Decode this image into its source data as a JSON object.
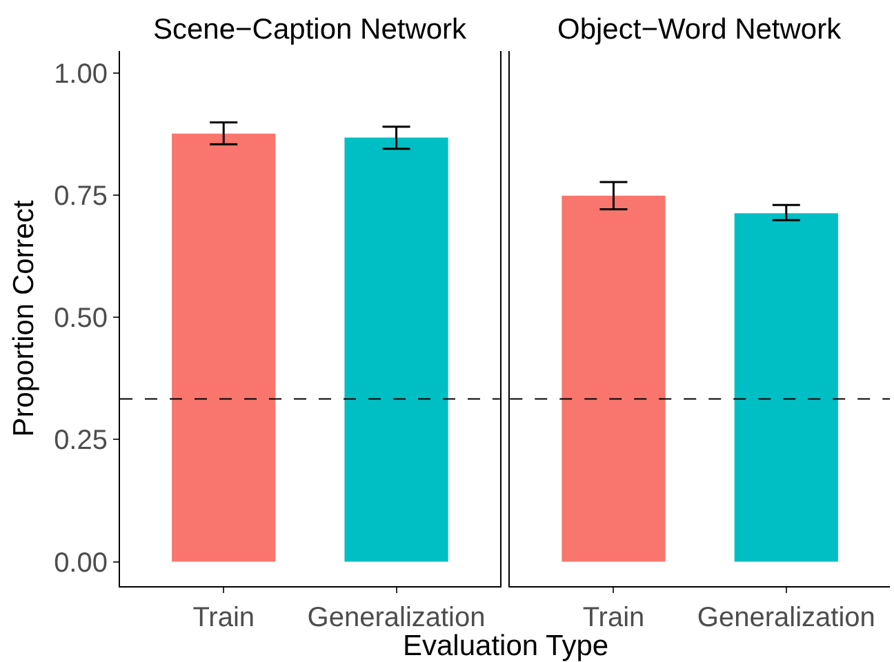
{
  "chart_data": [
    {
      "type": "bar",
      "title": "Scene−Caption Network",
      "ylabel": "Proportion Correct",
      "xlabel": "Evaluation Type",
      "categories": [
        "Train",
        "Generalization"
      ],
      "values": [
        0.876,
        0.868
      ],
      "colors": [
        "#f8766d",
        "#00bfc4"
      ],
      "errors": [
        [
          0.854,
          0.899
        ],
        [
          0.845,
          0.89
        ]
      ],
      "ylim": [
        -0.05,
        1.045
      ],
      "yticks": [
        {
          "value": 0,
          "label": "0.00"
        },
        {
          "value": 0.25,
          "label": "0.25"
        },
        {
          "value": 0.5,
          "label": "0.50"
        },
        {
          "value": 0.75,
          "label": "0.75"
        },
        {
          "value": 1,
          "label": "1.00"
        }
      ],
      "ref_lines": [
        {
          "axis": "y",
          "value": 0.333,
          "line_style": "dashed",
          "color": "#000000"
        }
      ]
    },
    {
      "type": "bar",
      "title": "Object−Word Network",
      "categories": [
        "Train",
        "Generalization"
      ],
      "values": [
        0.749,
        0.713
      ],
      "colors": [
        "#f8766d",
        "#00bfc4"
      ],
      "errors": [
        [
          0.721,
          0.777
        ],
        [
          0.699,
          0.73
        ]
      ],
      "ylim": [
        -0.05,
        1.045
      ],
      "tick_labels": "x",
      "ref_lines": [
        {
          "axis": "y",
          "value": 0.333,
          "line_style": "dashed",
          "color": "#000000"
        }
      ]
    }
  ]
}
